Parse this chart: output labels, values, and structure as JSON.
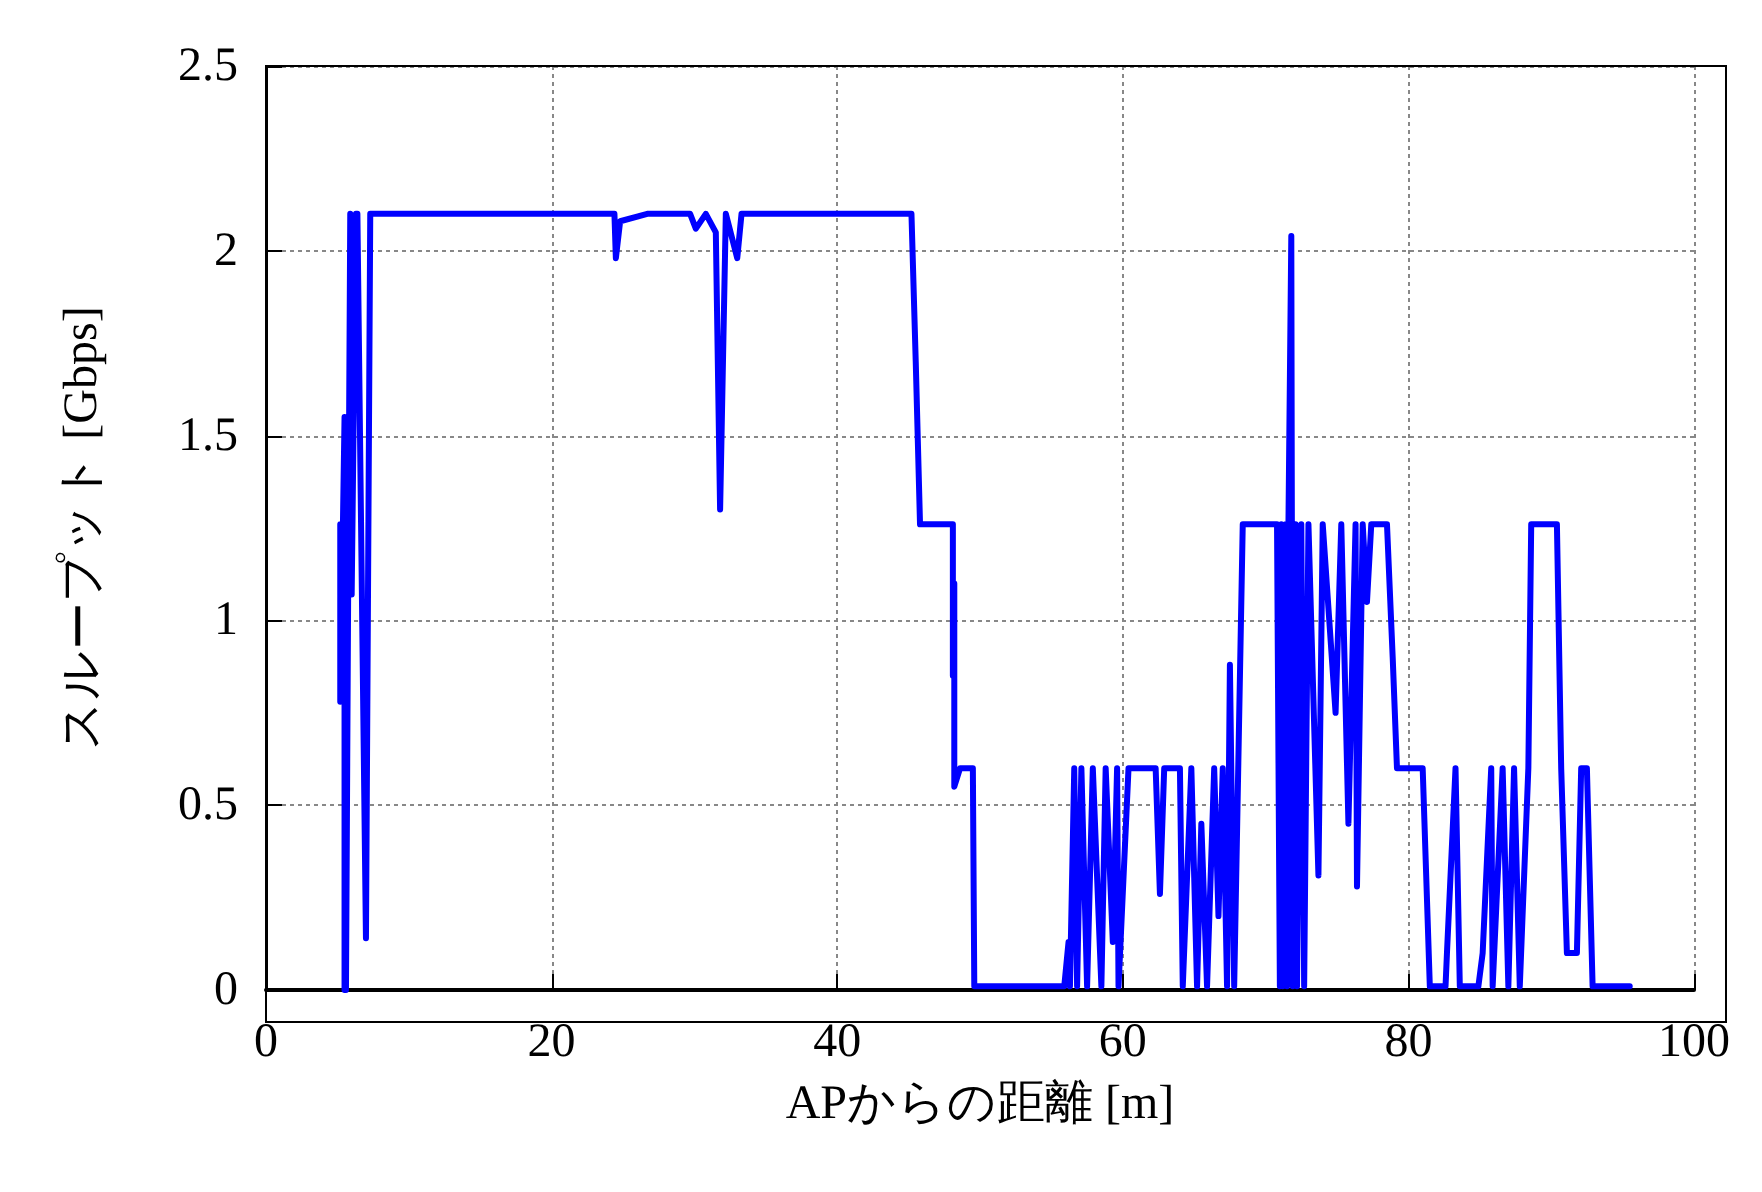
{
  "chart_data": {
    "type": "line",
    "xlabel": "APからの距離 [m]",
    "ylabel": "スループット [Gbps]",
    "xlim": [
      0,
      100
    ],
    "ylim": [
      0,
      2.5
    ],
    "xticks": [
      0,
      20,
      40,
      60,
      80,
      100
    ],
    "yticks": [
      0,
      0.5,
      1,
      1.5,
      2,
      2.5
    ],
    "grid": true,
    "marker": "none",
    "line_style": "solid",
    "series": [
      {
        "color": "#0000ff",
        "x": [
          5.2,
          5.2,
          5.5,
          5.5,
          5.6,
          5.9,
          6.0,
          6.3,
          6.4,
          7.0,
          7.3,
          24.4,
          24.5,
          24.8,
          26.7,
          29.7,
          30.1,
          30.8,
          31.5,
          31.8,
          32.2,
          33.0,
          33.3,
          33.8,
          45.2,
          45.5,
          45.8,
          48.1,
          48.1,
          48.2,
          48.2,
          48.6,
          49.5,
          49.6,
          55.9,
          56.2,
          56.3,
          56.6,
          56.8,
          57.1,
          57.5,
          57.9,
          58.5,
          58.8,
          59.3,
          59.6,
          59.7,
          60.4,
          60.5,
          60.7,
          62.3,
          62.6,
          62.9,
          64.0,
          64.2,
          64.8,
          65.2,
          65.5,
          65.9,
          66.4,
          66.7,
          67.0,
          67.3,
          67.5,
          67.8,
          68.4,
          70.8,
          71.0,
          71.1,
          71.2,
          71.4,
          71.5,
          71.6,
          71.8,
          71.9,
          72.1,
          72.2,
          72.5,
          72.7,
          73.0,
          73.7,
          74.0,
          74.9,
          75.3,
          75.8,
          76.3,
          76.4,
          76.8,
          77.1,
          77.4,
          78.5,
          78.9,
          79.2,
          81.0,
          81.5,
          82.6,
          82.7,
          83.3,
          83.6,
          84.9,
          85.2,
          85.8,
          85.9,
          86.6,
          87.0,
          87.4,
          87.8,
          88.4,
          88.6,
          90.4,
          90.7,
          91.1,
          91.8,
          92.1,
          92.5,
          92.9,
          95.5
        ],
        "values": [
          1.26,
          0.78,
          1.55,
          0,
          0,
          2.1,
          1.07,
          2.1,
          2.1,
          0.14,
          2.1,
          2.1,
          1.98,
          2.08,
          2.1,
          2.1,
          2.06,
          2.1,
          2.05,
          1.3,
          2.1,
          1.98,
          2.1,
          2.1,
          2.1,
          1.7,
          1.26,
          1.26,
          0.85,
          1.1,
          0.55,
          0.6,
          0.6,
          0.01,
          0.01,
          0.13,
          0.01,
          0.6,
          0.01,
          0.6,
          0.01,
          0.6,
          0.01,
          0.6,
          0.13,
          0.6,
          0.01,
          0.6,
          0.6,
          0.6,
          0.6,
          0.26,
          0.6,
          0.6,
          0.01,
          0.6,
          0.01,
          0.45,
          0.01,
          0.6,
          0.2,
          0.6,
          0.01,
          0.88,
          0.01,
          1.26,
          1.26,
          0.01,
          1.26,
          0.01,
          1.26,
          0.01,
          1.26,
          2.04,
          0.01,
          1.26,
          0.01,
          1.26,
          0.01,
          1.26,
          0.31,
          1.26,
          0.75,
          1.26,
          0.45,
          1.26,
          0.28,
          1.26,
          1.05,
          1.26,
          1.26,
          0.9,
          0.6,
          0.6,
          0.01,
          0.01,
          0.1,
          0.6,
          0.01,
          0.01,
          0.1,
          0.6,
          0.01,
          0.6,
          0.01,
          0.6,
          0.01,
          0.6,
          1.26,
          1.26,
          0.6,
          0.1,
          0.1,
          0.6,
          0.6,
          0.01,
          0.01
        ]
      }
    ]
  }
}
